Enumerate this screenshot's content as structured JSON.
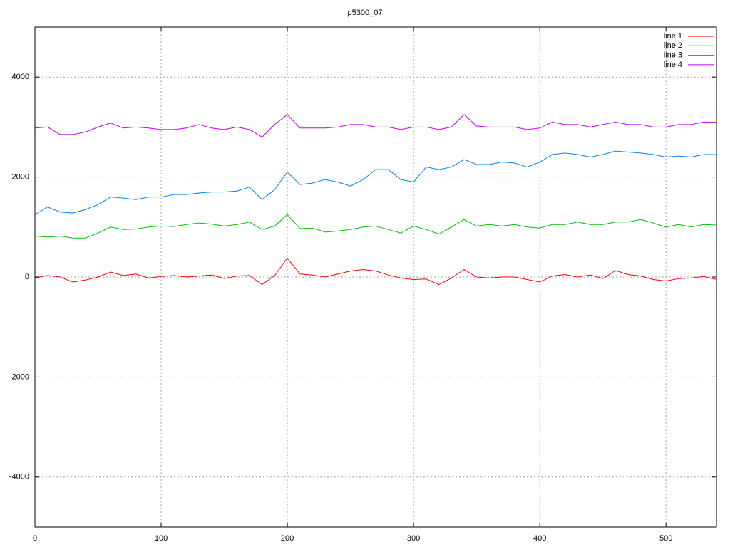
{
  "chart_data": {
    "type": "line",
    "title": "p5300_07",
    "x": [
      0,
      10,
      20,
      30,
      40,
      50,
      60,
      70,
      80,
      90,
      100,
      110,
      120,
      130,
      140,
      150,
      160,
      170,
      180,
      190,
      200,
      210,
      220,
      230,
      240,
      250,
      260,
      270,
      280,
      290,
      300,
      310,
      320,
      330,
      340,
      350,
      360,
      370,
      380,
      390,
      400,
      410,
      420,
      430,
      440,
      450,
      460,
      470,
      480,
      490,
      500,
      510,
      520,
      530,
      540
    ],
    "series": [
      {
        "name": "line 1",
        "color": "#ff0000",
        "values": [
          -20,
          30,
          0,
          -100,
          -60,
          0,
          100,
          30,
          60,
          -20,
          10,
          30,
          0,
          20,
          40,
          -30,
          20,
          30,
          -150,
          30,
          380,
          60,
          40,
          0,
          60,
          120,
          150,
          120,
          40,
          -20,
          -50,
          -40,
          -150,
          -20,
          150,
          0,
          -20,
          0,
          0,
          -50,
          -100,
          20,
          50,
          0,
          40,
          -30,
          130,
          50,
          20,
          -50,
          -80,
          -30,
          -20,
          10,
          -50
        ]
      },
      {
        "name": "line 2",
        "color": "#00c000",
        "values": [
          820,
          800,
          820,
          780,
          780,
          880,
          1000,
          950,
          960,
          1000,
          1020,
          1010,
          1050,
          1080,
          1060,
          1020,
          1050,
          1100,
          950,
          1020,
          1250,
          970,
          980,
          900,
          920,
          950,
          1000,
          1020,
          950,
          880,
          1020,
          950,
          860,
          1000,
          1150,
          1020,
          1050,
          1020,
          1050,
          1000,
          980,
          1050,
          1050,
          1100,
          1050,
          1050,
          1100,
          1100,
          1150,
          1080,
          1000,
          1050,
          1000,
          1050,
          1040
        ]
      },
      {
        "name": "line 3",
        "color": "#0080ff",
        "values": [
          1250,
          1400,
          1300,
          1280,
          1350,
          1450,
          1600,
          1580,
          1550,
          1600,
          1600,
          1650,
          1650,
          1680,
          1700,
          1700,
          1720,
          1800,
          1550,
          1750,
          2100,
          1850,
          1880,
          1950,
          1900,
          1820,
          1950,
          2150,
          2150,
          1950,
          1900,
          2200,
          2150,
          2200,
          2350,
          2250,
          2250,
          2300,
          2280,
          2200,
          2300,
          2450,
          2480,
          2450,
          2400,
          2450,
          2520,
          2500,
          2480,
          2450,
          2400,
          2420,
          2400,
          2450,
          2450
        ]
      },
      {
        "name": "line 4",
        "color": "#c000ff",
        "values": [
          2980,
          3000,
          2850,
          2850,
          2900,
          3000,
          3080,
          2980,
          3000,
          2980,
          2950,
          2950,
          2980,
          3050,
          2980,
          2950,
          3000,
          2950,
          2800,
          3050,
          3250,
          2980,
          2980,
          2980,
          3000,
          3050,
          3050,
          3000,
          3000,
          2950,
          3000,
          3000,
          2950,
          3000,
          3250,
          3020,
          3000,
          3000,
          3000,
          2950,
          2980,
          3100,
          3050,
          3050,
          3000,
          3050,
          3100,
          3050,
          3050,
          3000,
          3000,
          3050,
          3050,
          3100,
          3100
        ]
      }
    ],
    "xlim": [
      0,
      540
    ],
    "ylim": [
      -5000,
      5000
    ],
    "xticks": [
      0,
      100,
      200,
      300,
      400,
      500
    ],
    "yticks": [
      -4000,
      -2000,
      0,
      2000,
      4000
    ],
    "grid": true,
    "legend": "top-right"
  }
}
